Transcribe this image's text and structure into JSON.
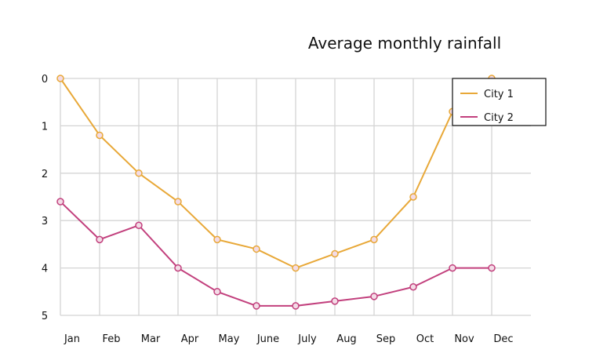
{
  "chart_data": {
    "type": "line",
    "title": "Average monthly rainfall",
    "xlabel": "",
    "ylabel": "",
    "categories": [
      "Jan",
      "Feb",
      "Mar",
      "Apr",
      "May",
      "June",
      "July",
      "Aug",
      "Sep",
      "Oct",
      "Nov",
      "Dec"
    ],
    "y_ticks": [
      0,
      1,
      2,
      3,
      4,
      5
    ],
    "ylim": [
      0,
      5
    ],
    "y_inverted": true,
    "grid": true,
    "legend": "top-right",
    "series": [
      {
        "name": "City 1",
        "color": "#E8A838",
        "values": [
          0,
          1.2,
          2.0,
          2.6,
          3.4,
          3.6,
          4.0,
          3.7,
          3.4,
          2.5,
          0.7,
          0
        ]
      },
      {
        "name": "City 2",
        "color": "#C2407D",
        "values": [
          2.6,
          3.4,
          3.1,
          4.0,
          4.5,
          4.8,
          4.8,
          4.7,
          4.6,
          4.4,
          4.0,
          4.0
        ]
      }
    ]
  }
}
